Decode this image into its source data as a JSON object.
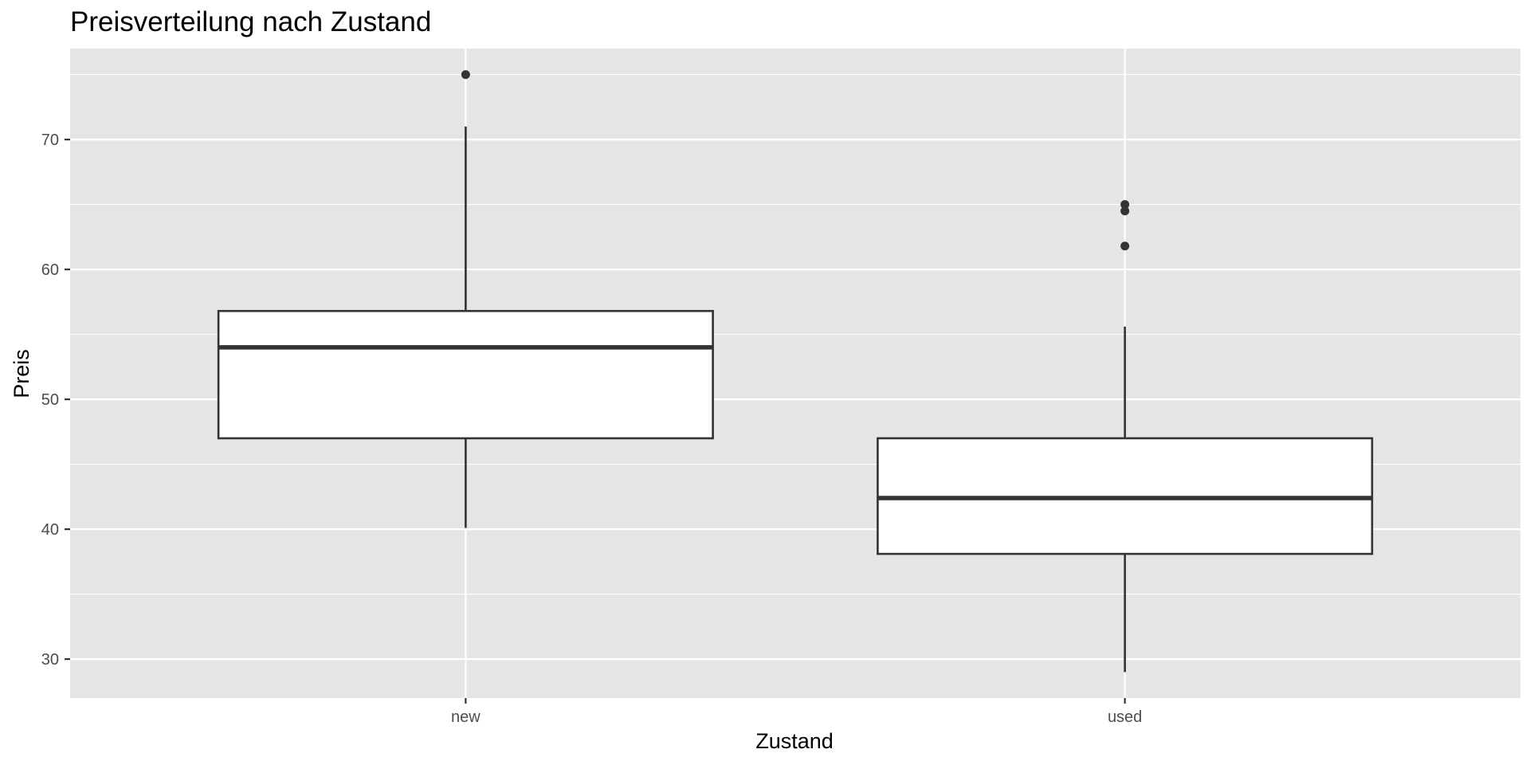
{
  "chart_data": {
    "type": "boxplot",
    "title": "Preisverteilung nach Zustand",
    "xlabel": "Zustand",
    "ylabel": "Preis",
    "ylim": [
      27,
      77
    ],
    "yticks": [
      30,
      40,
      50,
      60,
      70
    ],
    "ytick_labels": [
      "30",
      "40",
      "50",
      "60",
      "70"
    ],
    "categories": [
      "new",
      "used"
    ],
    "boxes": [
      {
        "category": "new",
        "whisker_low": 40.1,
        "q1": 47.0,
        "median": 54.0,
        "q3": 56.8,
        "whisker_high": 71.0,
        "outliers": [
          75.0
        ]
      },
      {
        "category": "used",
        "whisker_low": 29.0,
        "q1": 38.1,
        "median": 42.4,
        "q3": 47.0,
        "whisker_high": 55.6,
        "outliers": [
          65.0,
          64.5,
          61.8
        ]
      }
    ],
    "grid": true,
    "legend": "none",
    "colors": {
      "panel": "#e5e5e5",
      "grid": "#ffffff",
      "box_fill": "#ffffff",
      "box_line": "#333333"
    }
  }
}
